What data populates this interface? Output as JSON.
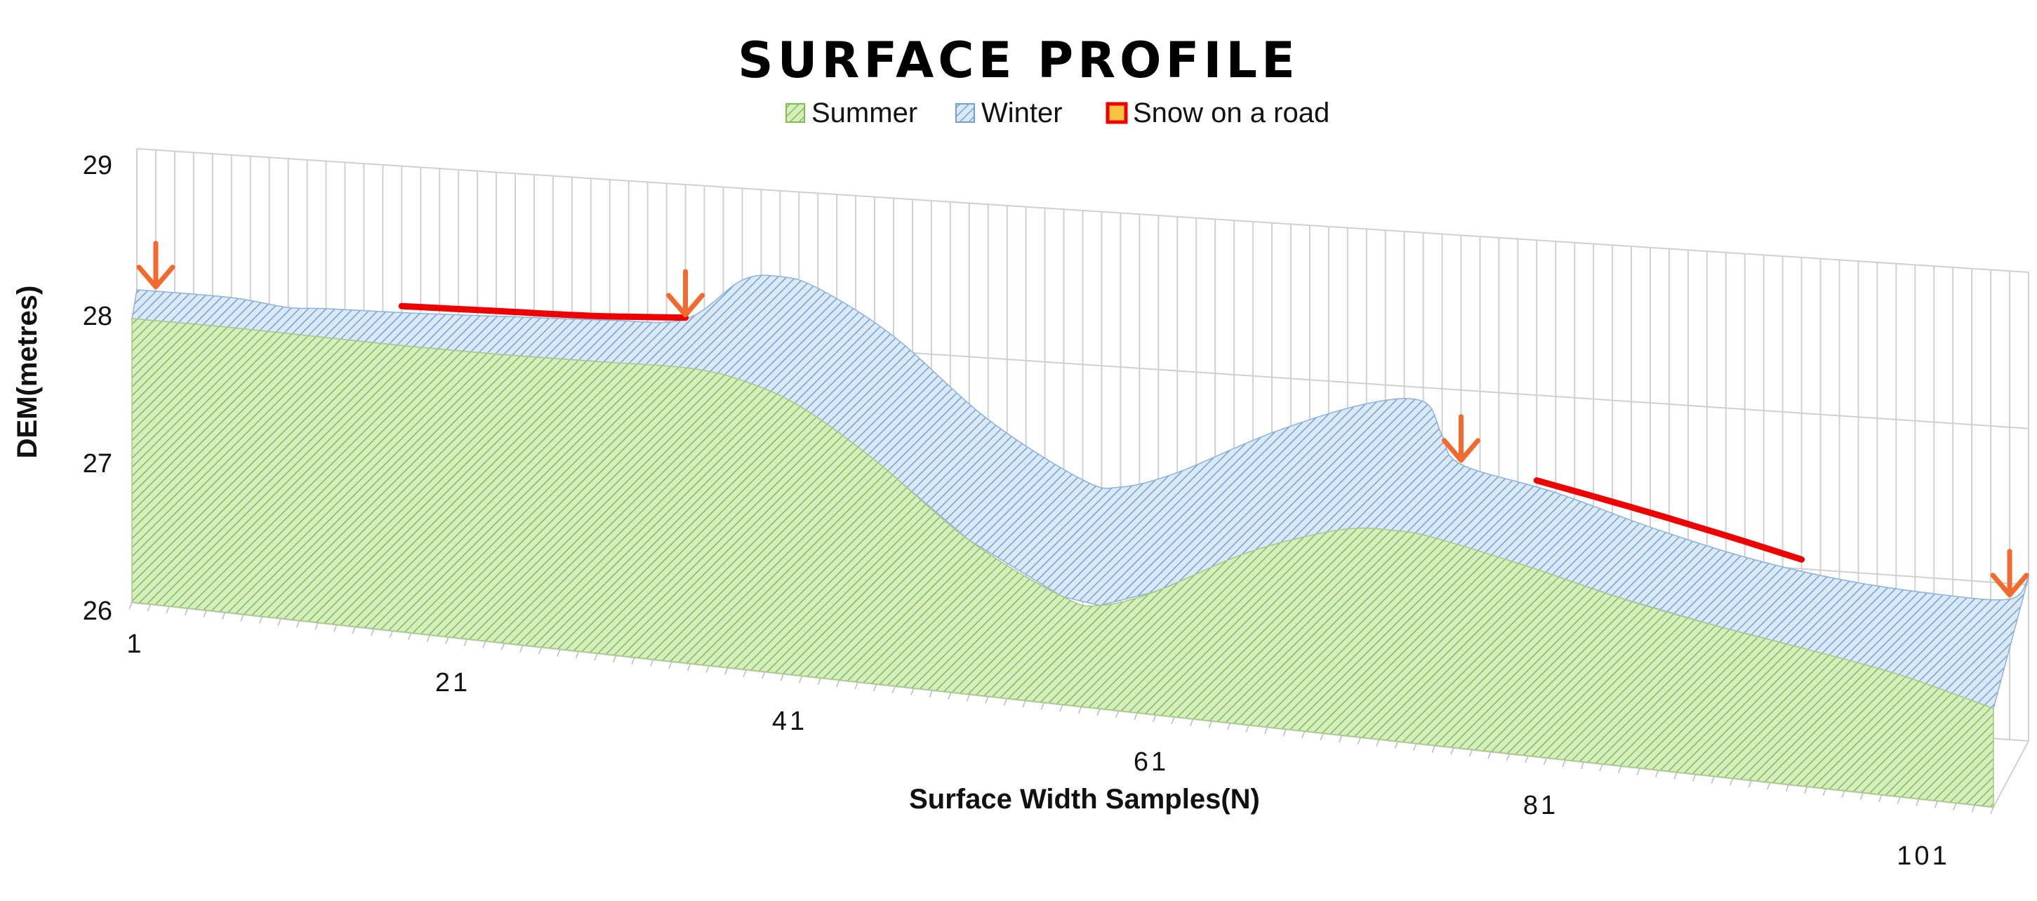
{
  "chart_data": {
    "type": "area",
    "title": "SURFACE PROFILE",
    "xlabel": "Surface Width Samples(N)",
    "ylabel": "DEM(metres)",
    "ylim": [
      26,
      29
    ],
    "yticks": [
      "26",
      "27",
      "28",
      "29"
    ],
    "xlim": [
      1,
      101
    ],
    "xticks": [
      "1",
      "21",
      "41",
      "61",
      "81",
      "101"
    ],
    "grid": true,
    "legend_position": "top",
    "colors": {
      "summer_fill": "#d6edc0",
      "summer_hatch": "#7cbf4a",
      "winter_fill": "#dbe9f7",
      "winter_hatch": "#6fa3d6",
      "snow_line": "#ee0000",
      "arrow": "#f26a2d",
      "grid": "#d0d0d0"
    },
    "series": [
      {
        "name": "Summer",
        "x": [
          1,
          6,
          11,
          16,
          21,
          26,
          31,
          34,
          37,
          41,
          46,
          51,
          53,
          56,
          61,
          66,
          69,
          71,
          76,
          81,
          86,
          91,
          96,
          101
        ],
        "values": [
          27.87,
          27.88,
          27.88,
          27.88,
          27.89,
          27.91,
          27.93,
          27.88,
          27.75,
          27.45,
          27.0,
          26.7,
          26.67,
          26.8,
          27.12,
          27.33,
          27.36,
          27.34,
          27.22,
          27.08,
          26.97,
          26.88,
          26.78,
          26.63
        ]
      },
      {
        "name": "Winter",
        "x": [
          1,
          6,
          9,
          11,
          16,
          21,
          26,
          30,
          33,
          35,
          37,
          41,
          46,
          51,
          53,
          56,
          61,
          66,
          69,
          70,
          71,
          76,
          81,
          86,
          91,
          96,
          100,
          101
        ],
        "values": [
          28.07,
          28.06,
          28.02,
          28.03,
          28.04,
          28.06,
          28.08,
          28.12,
          28.4,
          28.44,
          28.38,
          28.1,
          27.6,
          27.25,
          27.22,
          27.34,
          27.64,
          27.87,
          27.91,
          27.7,
          27.52,
          27.38,
          27.2,
          27.05,
          26.95,
          26.9,
          26.9,
          27.05
        ]
      },
      {
        "name": "Snow on a road",
        "segments": [
          {
            "x": [
              15,
              20,
              25,
              30
            ],
            "values": [
              28.08,
              28.09,
              28.1,
              28.13
            ]
          },
          {
            "x": [
              75,
              80,
              85,
              89
            ],
            "values": [
              27.45,
              27.32,
              27.18,
              27.06
            ]
          }
        ]
      }
    ],
    "annotations": [
      {
        "type": "arrow",
        "x": 2
      },
      {
        "type": "arrow",
        "x": 30
      },
      {
        "type": "arrow",
        "x": 71
      },
      {
        "type": "arrow",
        "x": 100
      }
    ]
  }
}
